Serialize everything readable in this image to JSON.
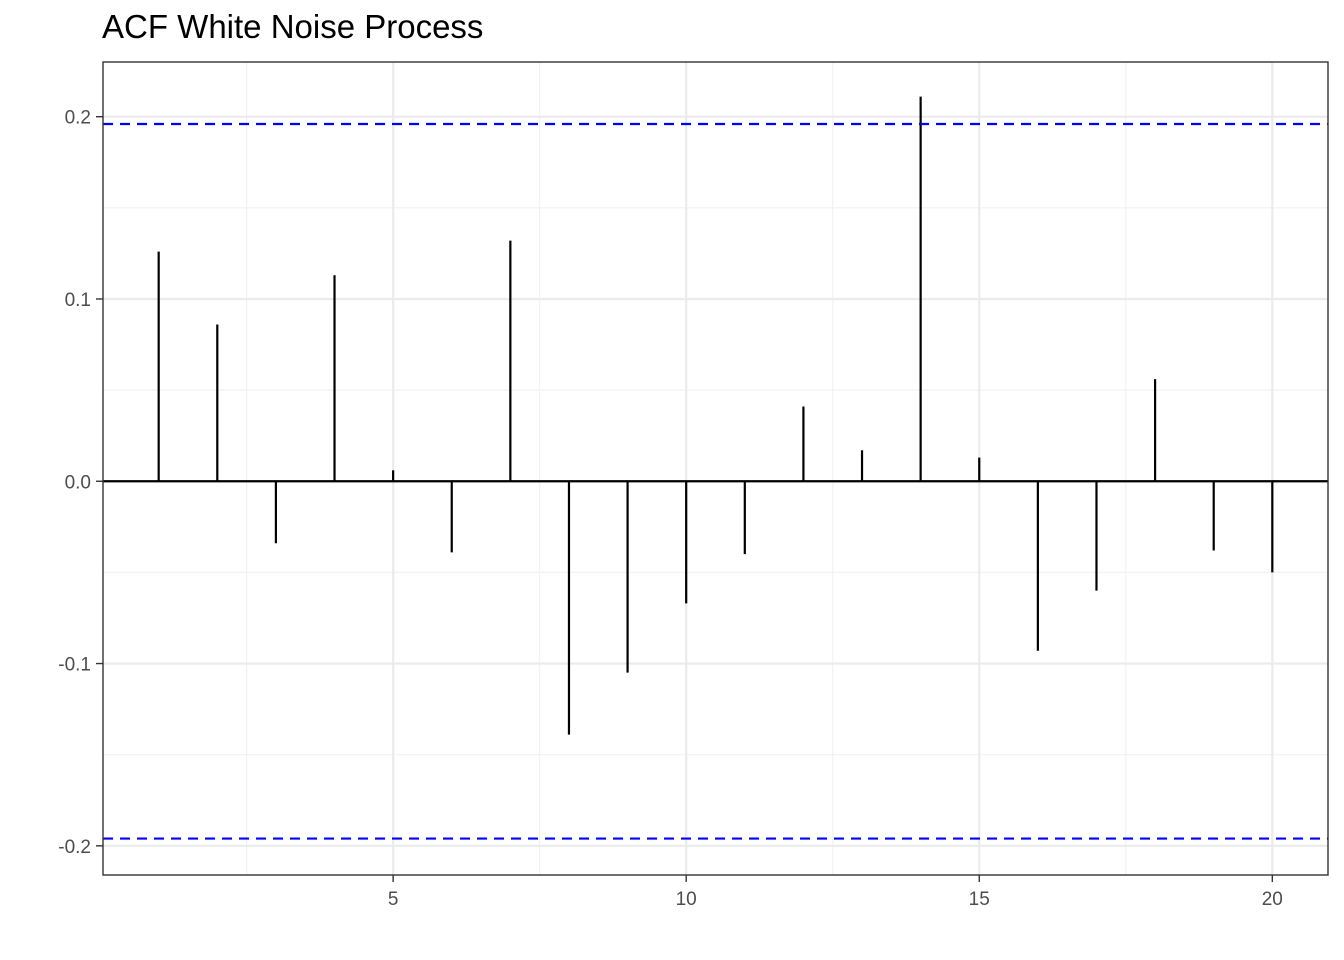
{
  "chart_data": {
    "type": "bar",
    "title": "ACF White Noise Process",
    "xlabel": "",
    "ylabel": "",
    "x": [
      1,
      2,
      3,
      4,
      5,
      6,
      7,
      8,
      9,
      10,
      11,
      12,
      13,
      14,
      15,
      16,
      17,
      18,
      19,
      20
    ],
    "values": [
      0.126,
      0.086,
      -0.034,
      0.113,
      0.006,
      -0.039,
      0.132,
      -0.139,
      -0.105,
      -0.067,
      -0.04,
      0.041,
      0.017,
      0.211,
      0.013,
      -0.093,
      -0.06,
      0.056,
      -0.038,
      -0.05
    ],
    "xlim": [
      0.05,
      20.95
    ],
    "ylim": [
      -0.216,
      0.23
    ],
    "x_ticks": [
      5,
      10,
      15,
      20
    ],
    "x_tick_labels": [
      "5",
      "10",
      "15",
      "20"
    ],
    "y_ticks": [
      -0.2,
      -0.1,
      0.0,
      0.1,
      0.2
    ],
    "y_tick_labels": [
      "-0.2",
      "-0.1",
      "0.0",
      "0.1",
      "0.2"
    ],
    "confidence_bounds": [
      0.196,
      -0.196
    ],
    "zero_line": 0,
    "grid": true,
    "colors": {
      "bars": "#000000",
      "bounds": "#0000ff",
      "grid_major": "#ebebeb",
      "grid_minor": "#f2f2f2",
      "panel_border": "#333333"
    }
  }
}
